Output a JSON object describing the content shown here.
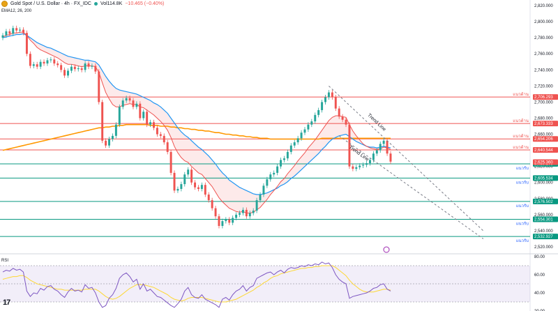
{
  "header": {
    "symbol": "Gold Spot / U.S. Dollar · 4h · FX_IDC",
    "volume": "Vol114.8K",
    "change": "−10.465 (−0.40%)"
  },
  "indicators": {
    "ema_label": "EMA12, 26, 200",
    "rsi_label": "RSI"
  },
  "colors": {
    "up": "#26a69a",
    "down": "#ef5350",
    "ema_fast": "#ef5350",
    "ema_slow": "#2196f3",
    "ema_200": "#ff9800",
    "resistance": "#ef5350",
    "support": "#089981",
    "rsi": "#7e57c2",
    "rsi_ma": "#fdd835"
  },
  "chart_data": {
    "type": "candlestick",
    "timeframe": "4h",
    "ylim": [
      2520,
      2820
    ],
    "y_ticks": [
      2820,
      2800,
      2780,
      2760,
      2740,
      2720,
      2700,
      2680,
      2660,
      2640,
      2620,
      2600,
      2580,
      2560,
      2540,
      2520
    ],
    "closes": [
      2783,
      2788,
      2785,
      2792,
      2789,
      2790,
      2786,
      2760,
      2745,
      2747,
      2744,
      2750,
      2748,
      2752,
      2753,
      2748,
      2746,
      2740,
      2733,
      2739,
      2744,
      2741,
      2742,
      2740,
      2748,
      2744,
      2745,
      2738,
      2700,
      2652,
      2646,
      2654,
      2658,
      2672,
      2694,
      2702,
      2705,
      2702,
      2694,
      2698,
      2680,
      2688,
      2672,
      2675,
      2668,
      2660,
      2658,
      2650,
      2638,
      2612,
      2590,
      2592,
      2598,
      2610,
      2616,
      2600,
      2594,
      2592,
      2597,
      2585,
      2578,
      2568,
      2558,
      2546,
      2552,
      2554,
      2550,
      2556,
      2560,
      2562,
      2566,
      2558,
      2562,
      2565,
      2578,
      2585,
      2596,
      2604,
      2610,
      2612,
      2620,
      2628,
      2630,
      2638,
      2646,
      2650,
      2655,
      2662,
      2666,
      2672,
      2676,
      2684,
      2690,
      2700,
      2706,
      2712,
      2706,
      2692,
      2682,
      2678,
      2672,
      2620,
      2617,
      2619,
      2621,
      2622,
      2624,
      2628,
      2636,
      2640,
      2648,
      2652,
      2636,
      2626
    ],
    "ema12": [
      2781,
      2783,
      2784,
      2786,
      2786,
      2787,
      2787,
      2783,
      2777,
      2773,
      2768,
      2765,
      2763,
      2761,
      2759,
      2757,
      2755,
      2752,
      2749,
      2747,
      2747,
      2746,
      2745,
      2744,
      2745,
      2745,
      2745,
      2744,
      2737,
      2724,
      2712,
      2704,
      2697,
      2694,
      2694,
      2696,
      2697,
      2698,
      2697,
      2697,
      2694,
      2693,
      2690,
      2687,
      2684,
      2680,
      2676,
      2671,
      2665,
      2656,
      2645,
      2637,
      2631,
      2627,
      2625,
      2620,
      2616,
      2612,
      2610,
      2605,
      2600,
      2595,
      2588,
      2581,
      2576,
      2572,
      2568,
      2566,
      2564,
      2563,
      2564,
      2562,
      2562,
      2563,
      2566,
      2569,
      2574,
      2579,
      2585,
      2590,
      2595,
      2601,
      2605,
      2611,
      2616,
      2621,
      2627,
      2632,
      2637,
      2643,
      2648,
      2653,
      2659,
      2665,
      2671,
      2677,
      2681,
      2683,
      2683,
      2682,
      2681,
      2672,
      2664,
      2658,
      2653,
      2648,
      2645,
      2643,
      2642,
      2641,
      2642,
      2644,
      2643,
      2641
    ],
    "ema26": [
      2780,
      2781,
      2782,
      2783,
      2784,
      2784,
      2785,
      2783,
      2780,
      2777,
      2774,
      2772,
      2770,
      2768,
      2767,
      2765,
      2763,
      2761,
      2759,
      2757,
      2756,
      2755,
      2754,
      2753,
      2752,
      2752,
      2751,
      2750,
      2746,
      2739,
      2732,
      2726,
      2721,
      2717,
      2715,
      2714,
      2713,
      2712,
      2711,
      2710,
      2708,
      2706,
      2704,
      2702,
      2699,
      2697,
      2694,
      2690,
      2686,
      2680,
      2674,
      2668,
      2663,
      2659,
      2656,
      2652,
      2648,
      2644,
      2641,
      2637,
      2633,
      2628,
      2623,
      2617,
      2612,
      2608,
      2603,
      2600,
      2597,
      2594,
      2592,
      2590,
      2588,
      2586,
      2585,
      2585,
      2586,
      2587,
      2589,
      2591,
      2593,
      2596,
      2598,
      2601,
      2605,
      2608,
      2612,
      2616,
      2620,
      2624,
      2628,
      2632,
      2636,
      2641,
      2645,
      2650,
      2654,
      2656,
      2658,
      2659,
      2660,
      2657,
      2654,
      2651,
      2649,
      2647,
      2645,
      2644,
      2644,
      2643,
      2644,
      2645,
      2644,
      2643
    ],
    "ema200": [
      2640,
      2641,
      2642,
      2643,
      2644,
      2645,
      2646,
      2647,
      2648,
      2649,
      2650,
      2651,
      2652,
      2653,
      2654,
      2655,
      2656,
      2657,
      2658,
      2659,
      2660,
      2661,
      2662,
      2663,
      2664,
      2665,
      2666,
      2667,
      2668,
      2668,
      2669,
      2669,
      2670,
      2670,
      2671,
      2671,
      2672,
      2672,
      2672,
      2672,
      2672,
      2672,
      2672,
      2671,
      2671,
      2671,
      2670,
      2670,
      2670,
      2669,
      2669,
      2668,
      2668,
      2667,
      2667,
      2666,
      2666,
      2665,
      2665,
      2664,
      2664,
      2663,
      2662,
      2662,
      2661,
      2660,
      2660,
      2659,
      2659,
      2658,
      2658,
      2657,
      2657,
      2656,
      2656,
      2655,
      2655,
      2655,
      2654,
      2654,
      2654,
      2654,
      2654,
      2654,
      2654,
      2654,
      2654,
      2654,
      2654,
      2654,
      2654,
      2654,
      2654,
      2655,
      2655,
      2655,
      2655,
      2655,
      2655,
      2655,
      2655,
      2655,
      2655,
      2655,
      2655,
      2655,
      2655,
      2655,
      2655,
      2655,
      2655,
      2655,
      2655,
      2655
    ],
    "resistance_levels": [
      {
        "price": 2706.293,
        "label": "แนวต้าน"
      },
      {
        "price": 2673.333,
        "label": "แนวต้าน"
      },
      {
        "price": 2654.206,
        "label": "แนวต้าน"
      },
      {
        "price": 2640.544,
        "label": "แนวต้าน"
      }
    ],
    "support_levels": [
      {
        "price": 2623.205,
        "label": "แนวรับ"
      },
      {
        "price": 2605.534,
        "label": "แนวรับ"
      },
      {
        "price": 2576.502,
        "label": "แนวรับ"
      },
      {
        "price": 2554.301,
        "label": "แนวรับ"
      },
      {
        "price": 2532.927,
        "label": "แนวรับ"
      }
    ],
    "last_price": {
      "price": 2625.36,
      "label": "2,625.360"
    },
    "trend_lines": [
      {
        "label": "Trend Line",
        "from": [
          95,
          2720
        ],
        "to": [
          140,
          2540
        ]
      },
      {
        "label": "Trend Line",
        "from": [
          98,
          2658
        ],
        "to": [
          140,
          2530
        ]
      }
    ],
    "rsi": {
      "ylim": [
        20,
        80
      ],
      "y_ticks": [
        80,
        60,
        40,
        20
      ],
      "band": [
        30,
        70
      ],
      "values": [
        63,
        65,
        64,
        67,
        65,
        66,
        63,
        42,
        36,
        40,
        39,
        45,
        43,
        47,
        48,
        44,
        42,
        38,
        35,
        41,
        45,
        42,
        43,
        41,
        49,
        45,
        46,
        40,
        30,
        24,
        26,
        34,
        38,
        45,
        56,
        60,
        62,
        58,
        52,
        55,
        44,
        50,
        42,
        44,
        40,
        36,
        35,
        32,
        29,
        26,
        24,
        28,
        33,
        42,
        46,
        38,
        35,
        34,
        38,
        33,
        31,
        29,
        27,
        24,
        33,
        35,
        32,
        38,
        42,
        44,
        48,
        42,
        46,
        48,
        56,
        58,
        60,
        62,
        63,
        60,
        63,
        65,
        62,
        66,
        68,
        67,
        68,
        70,
        69,
        71,
        70,
        72,
        71,
        74,
        72,
        73,
        68,
        60,
        55,
        52,
        50,
        34,
        36,
        37,
        38,
        39,
        40,
        42,
        45,
        46,
        49,
        50,
        44,
        42
      ],
      "ma": [
        55,
        56,
        57,
        58,
        58,
        59,
        59,
        57,
        54,
        52,
        50,
        49,
        48,
        47,
        46,
        45,
        44,
        44,
        43,
        43,
        43,
        43,
        43,
        43,
        44,
        44,
        44,
        44,
        42,
        39,
        36,
        34,
        33,
        34,
        36,
        39,
        42,
        45,
        47,
        49,
        49,
        49,
        48,
        47,
        46,
        44,
        42,
        40,
        38,
        35,
        33,
        32,
        31,
        32,
        34,
        35,
        35,
        35,
        35,
        34,
        33,
        32,
        31,
        30,
        30,
        30,
        31,
        32,
        33,
        35,
        37,
        39,
        41,
        43,
        46,
        48,
        51,
        53,
        56,
        58,
        59,
        61,
        62,
        63,
        64,
        65,
        66,
        67,
        67,
        68,
        68,
        69,
        69,
        70,
        70,
        70,
        70,
        68,
        65,
        62,
        59,
        54,
        50,
        47,
        44,
        42,
        41,
        41,
        41,
        42,
        43,
        44,
        44,
        43
      ]
    }
  }
}
